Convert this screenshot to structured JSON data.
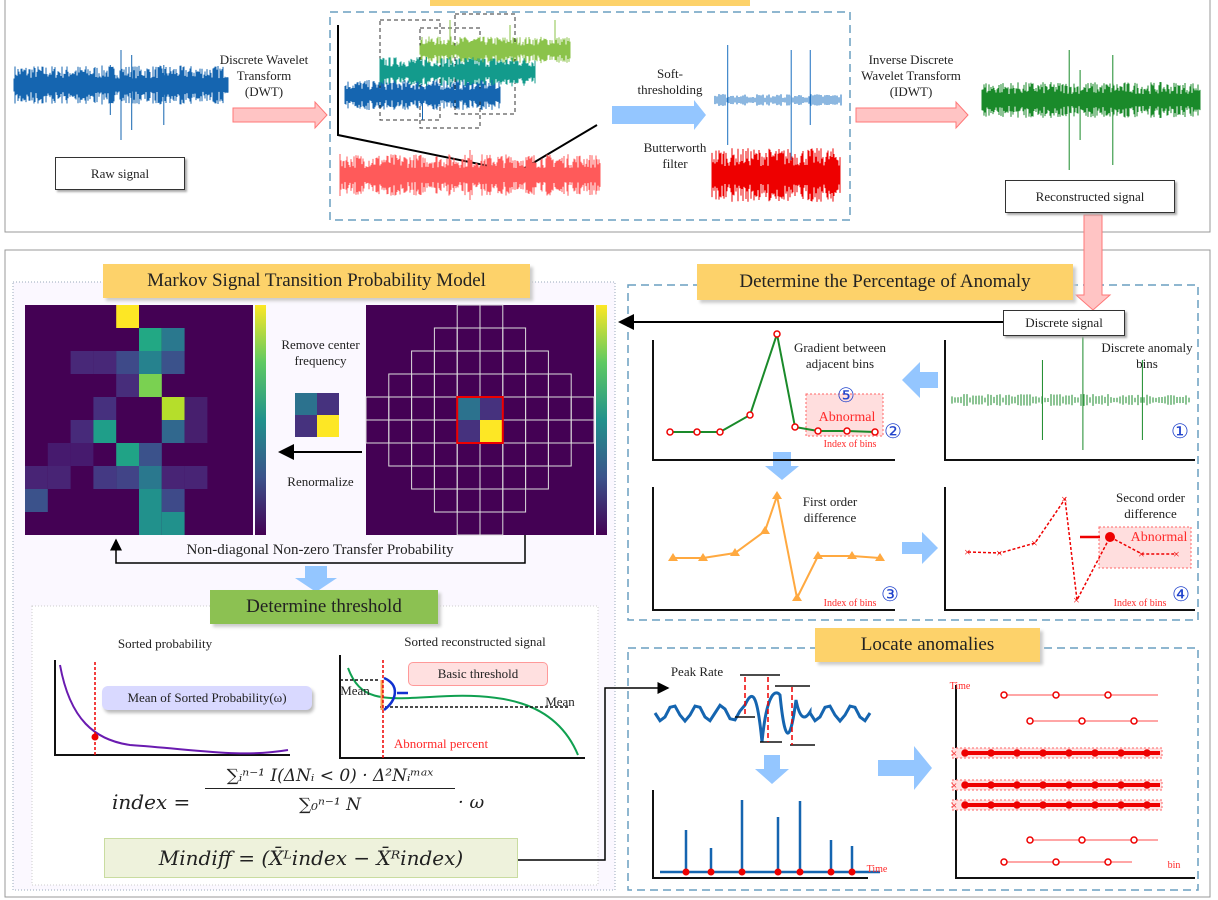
{
  "top": {
    "raw_signal_label": "Raw signal",
    "dwt_label": "Discrete Wavelet Transform (DWT)",
    "soft_threshold_label": "Soft-thresholding",
    "butterworth_label": "Butterworth filter",
    "idwt_label": "Inverse Discrete Wavelet Transform (IDWT)",
    "reconstructed_label": "Reconstructed signal"
  },
  "markov": {
    "title": "Markov Signal Transition Probability Model",
    "remove_center_label": "Remove center frequency",
    "renormalize_label": "Renormalize",
    "non_diagonal_label": "Non-diagonal Non-zero Transfer Probability"
  },
  "threshold": {
    "title": "Determine threshold",
    "sorted_probability_label": "Sorted probability",
    "mean_sorted_label": "Mean of Sorted Probability(ω)",
    "sorted_signal_label": "Sorted reconstructed signal",
    "basic_threshold_label": "Basic threshold",
    "mean_left_label": "Mean",
    "mean_right_label": "Mean",
    "abnormal_percent_label": "Abnormal percent",
    "index_formula_lhs": "index =",
    "index_formula_num": "∑ᵢⁿ⁻¹ I(ΔNᵢ < 0) · Δ²Nᵢᵐᵃˣ",
    "index_formula_den": "∑₀ⁿ⁻¹ N",
    "index_formula_tail": "· ω",
    "mindiff_formula": "Mindiff = (X̄ᴸindex − X̄ᴿindex)"
  },
  "anomaly": {
    "title": "Determine the Percentage of Anomaly",
    "discrete_signal_label": "Discrete signal",
    "gradient_label": "Gradient between adjacent bins",
    "discrete_bins_label": "Discrete anomaly bins",
    "first_order_label": "First order difference",
    "second_order_label": "Second order difference",
    "abnormal_label": "Abnormal",
    "index_of_bins": "Index of bins",
    "step_numbers": [
      "①",
      "②",
      "③",
      "④",
      "⑤"
    ]
  },
  "locate": {
    "title": "Locate anomalies",
    "peak_rate_label": "Peak Rate",
    "time_label": "Time",
    "time_axis_label": "Time",
    "bin_label": "bin"
  },
  "colors": {
    "orange": "#fdd26a",
    "green_title": "#8cc152",
    "pink": "#ffb3b3",
    "blue_arrow": "#94c6ff",
    "signal_blue": "#1565b0",
    "signal_green": "#1a8a2a",
    "signal_red": "#ff4444",
    "viridis_bg": "#440154"
  }
}
